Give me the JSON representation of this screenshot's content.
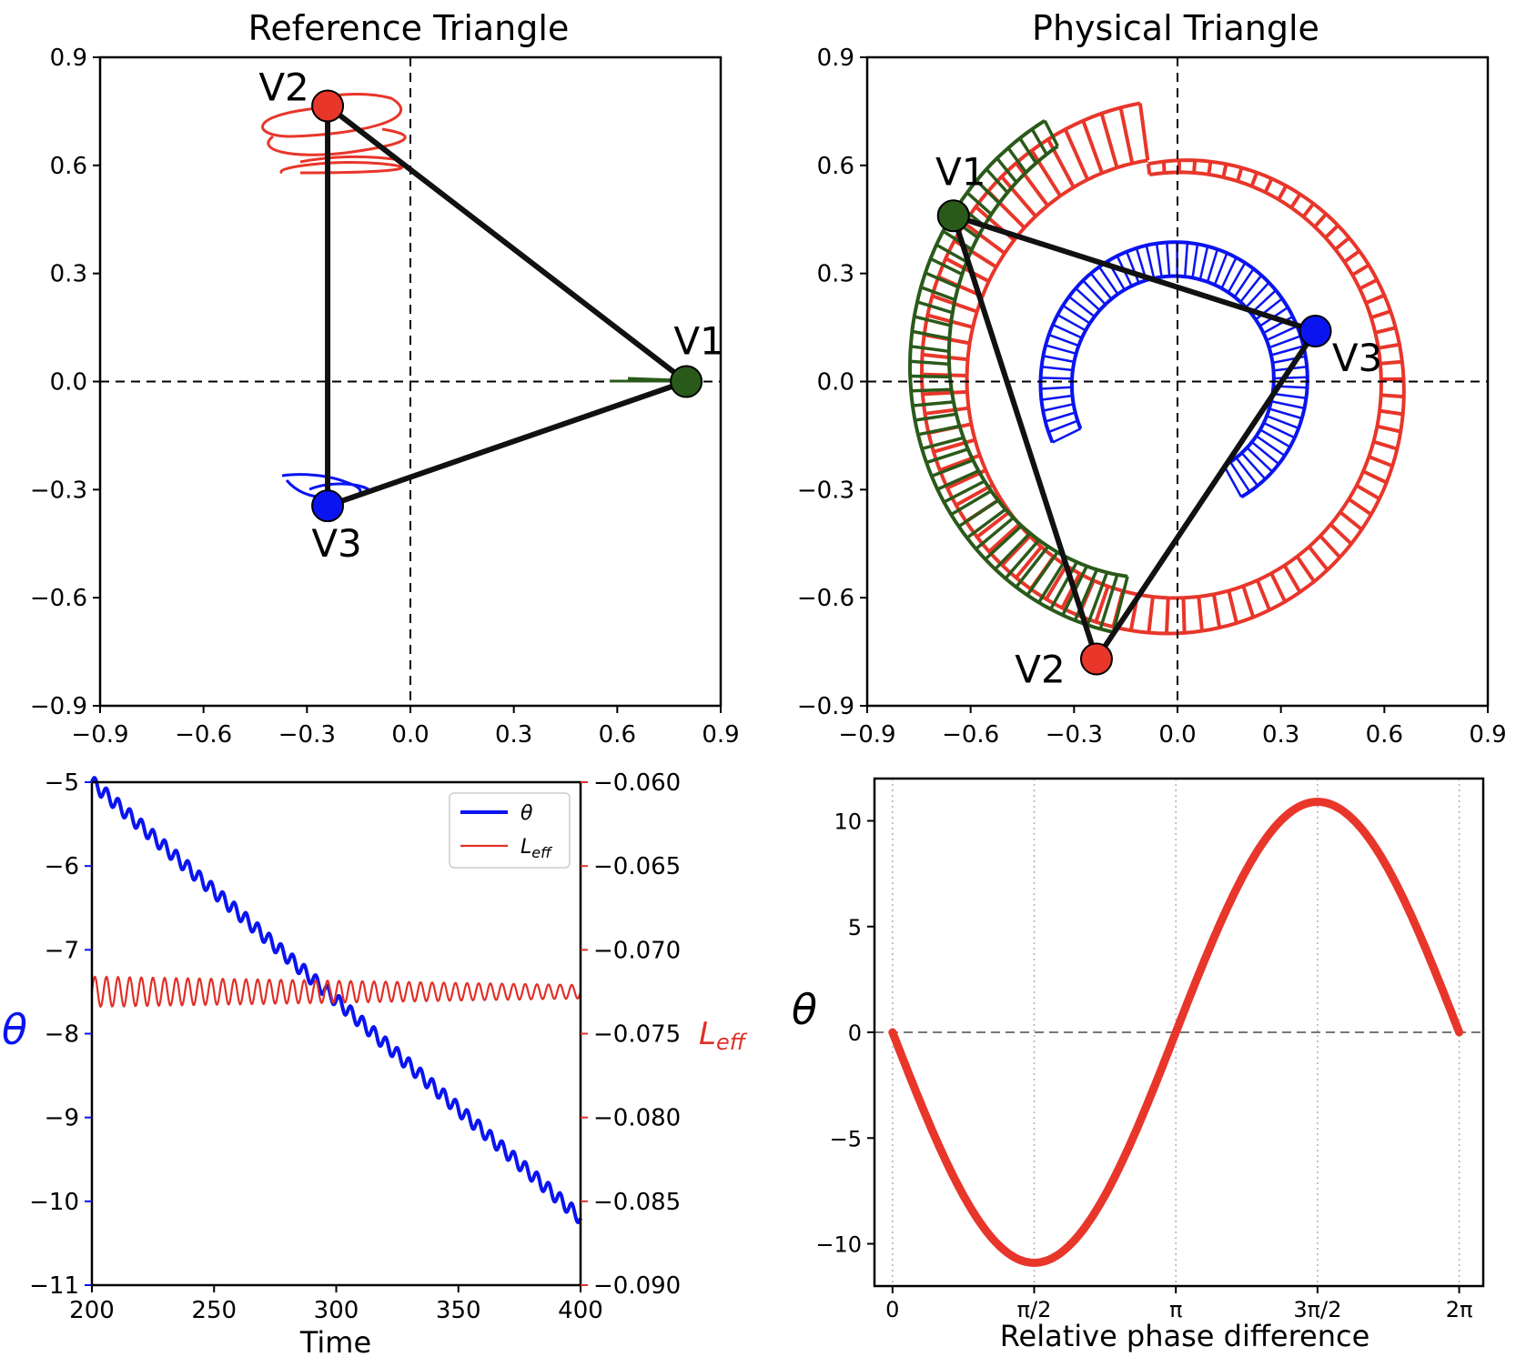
{
  "colors": {
    "v1": "#2a5a1a",
    "v2": "#e8362a",
    "v3": "#0a14f0",
    "edge": "#111111",
    "theta_line": "#0a14f0",
    "leff_line": "#e03028",
    "phase_curve": "#e8362a"
  },
  "chart_data": [
    {
      "type": "scatter",
      "title": "Reference Triangle",
      "xlim": [
        -0.9,
        0.9
      ],
      "ylim": [
        -0.9,
        0.9
      ],
      "xticks": [
        "−0.9",
        "−0.6",
        "−0.3",
        "0.0",
        "0.3",
        "0.6",
        "0.9"
      ],
      "yticks": [
        "−0.9",
        "−0.6",
        "−0.3",
        "0.0",
        "0.3",
        "0.6",
        "0.9"
      ],
      "reference_lines": {
        "x": 0.0,
        "y": 0.0,
        "style": "dashed"
      },
      "vertices": [
        {
          "label": "V1",
          "x": 0.8,
          "y": 0.0,
          "color": "#2a5a1a"
        },
        {
          "label": "V2",
          "x": -0.24,
          "y": 0.765,
          "color": "#e8362a"
        },
        {
          "label": "V3",
          "x": -0.24,
          "y": -0.345,
          "color": "#0a14f0"
        }
      ],
      "edges": [
        [
          "V1",
          "V2"
        ],
        [
          "V2",
          "V3"
        ],
        [
          "V3",
          "V1"
        ]
      ]
    },
    {
      "type": "scatter",
      "title": "Physical Triangle",
      "xlim": [
        -0.9,
        0.9
      ],
      "ylim": [
        -0.9,
        0.9
      ],
      "xticks": [
        "−0.9",
        "−0.6",
        "−0.3",
        "0.0",
        "0.3",
        "0.6",
        "0.9"
      ],
      "yticks": [
        "−0.9",
        "−0.6",
        "−0.3",
        "0.0",
        "0.3",
        "0.6",
        "0.9"
      ],
      "reference_lines": {
        "x": 0.0,
        "y": 0.0,
        "style": "dashed"
      },
      "vertices": [
        {
          "label": "V1",
          "x": -0.65,
          "y": 0.46,
          "color": "#2a5a1a"
        },
        {
          "label": "V2",
          "x": -0.235,
          "y": -0.77,
          "color": "#e8362a"
        },
        {
          "label": "V3",
          "x": 0.4,
          "y": 0.14,
          "color": "#0a14f0"
        }
      ],
      "edges": [
        [
          "V1",
          "V2"
        ],
        [
          "V2",
          "V3"
        ],
        [
          "V3",
          "V1"
        ]
      ]
    },
    {
      "type": "line",
      "xlabel": "Time",
      "ylabel_left": "θ",
      "ylabel_right_main": "L",
      "ylabel_right_sub": "eff",
      "xlim": [
        200,
        400
      ],
      "ylim_left": [
        -11,
        -5
      ],
      "ylim_right": [
        -0.09,
        -0.06
      ],
      "xticks": [
        "200",
        "250",
        "300",
        "350",
        "400"
      ],
      "yticks_left": [
        "−5",
        "−6",
        "−7",
        "−8",
        "−9",
        "−10",
        "−11"
      ],
      "yticks_right": [
        "−0.060",
        "−0.065",
        "−0.070",
        "−0.075",
        "−0.080",
        "−0.085",
        "−0.090"
      ],
      "legend_position": "top-right",
      "legend": [
        {
          "label_main": "θ",
          "label_sub": ""
        },
        {
          "label_main": "L",
          "label_sub": "eff"
        }
      ],
      "series": [
        {
          "name": "θ",
          "axis": "left",
          "start": [
            200,
            -5.0
          ],
          "end": [
            400,
            -10.2
          ],
          "ripple_amplitude": 0.08,
          "ripple_cycles": 42
        },
        {
          "name": "L_eff",
          "axis": "right",
          "mean": -0.0725,
          "ripple_amplitude_start": 0.0009,
          "ripple_amplitude_end": 0.0004,
          "ripple_cycles": 42
        }
      ]
    },
    {
      "type": "line",
      "xlabel": "Relative phase difference",
      "ylabel": "θ",
      "xlim": [
        -0.2,
        6.55
      ],
      "ylim": [
        -12.0,
        12.0
      ],
      "xticks": [
        "0",
        "π/2",
        "π",
        "3π/2",
        "2π"
      ],
      "yticks": [
        "10",
        "5",
        "0",
        "−5",
        "−10"
      ],
      "reference_lines": {
        "y": 0.0,
        "style": "dashed"
      },
      "vertical_gridlines": "dotted",
      "series": [
        {
          "name": "",
          "function": "-10.9*sin(x)",
          "x_range": [
            0,
            6.2832
          ],
          "samples": [
            [
              0,
              0
            ],
            [
              1.5708,
              -10.9
            ],
            [
              3.1416,
              0
            ],
            [
              4.7124,
              10.9
            ],
            [
              6.2832,
              0
            ]
          ]
        }
      ]
    }
  ]
}
